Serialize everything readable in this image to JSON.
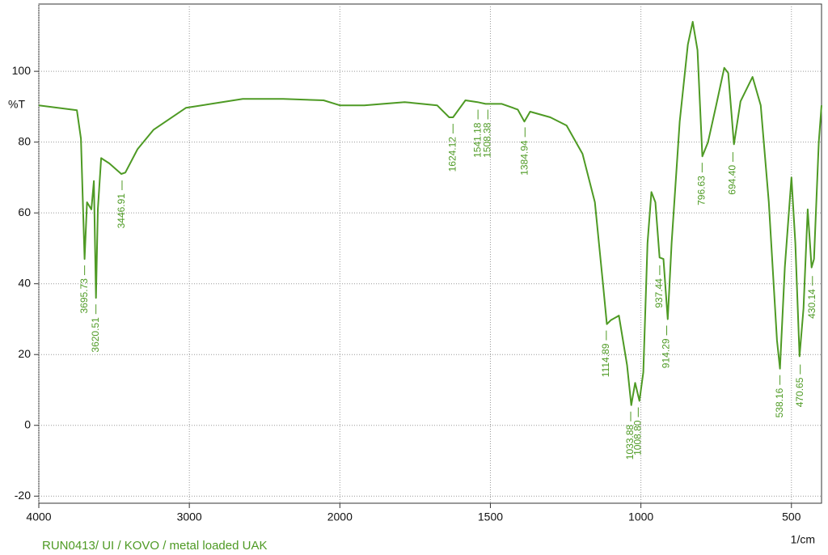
{
  "chart_data": {
    "type": "line",
    "title": "RUN0413/ UI / KOVO / metal loaded UAK",
    "y_label": "%T",
    "x_label": "1/cm",
    "color": "#4e9a24",
    "grid": true,
    "xlim": [
      4000,
      400
    ],
    "ylim": [
      -22,
      119
    ],
    "xticks": [
      4000,
      3000,
      2000,
      1500,
      1000,
      500
    ],
    "yticks": [
      -20,
      0,
      20,
      40,
      60,
      80,
      100
    ],
    "x": [
      4000,
      3747,
      3720,
      3696,
      3680,
      3651,
      3634,
      3620,
      3608,
      3586,
      3532,
      3452,
      3425,
      3344,
      3237,
      3022,
      2645,
      2376,
      2108,
      2000,
      1919,
      1785,
      1677,
      1637,
      1624,
      1583,
      1543,
      1516,
      1462,
      1409,
      1387,
      1368,
      1301,
      1247,
      1194,
      1153,
      1126,
      1113,
      1100,
      1073,
      1046,
      1032,
      1019,
      1005,
      992,
      978,
      965,
      952,
      938,
      925,
      911,
      898,
      871,
      844,
      828,
      812,
      796,
      777,
      750,
      723,
      710,
      691,
      669,
      629,
      602,
      575,
      548,
      538,
      522,
      500,
      487,
      473,
      460,
      446,
      433,
      425,
      409,
      400
    ],
    "values": [
      90.4,
      89,
      81,
      47,
      63,
      61,
      69,
      36,
      61,
      75.5,
      74,
      71,
      71.4,
      78,
      83.5,
      89.7,
      92.2,
      92.2,
      91.8,
      90.4,
      90.4,
      91.3,
      90.4,
      87,
      87,
      91.8,
      91.3,
      90.8,
      90.8,
      89.2,
      85.8,
      88.6,
      87,
      84.7,
      76.7,
      63,
      40,
      28.6,
      29.7,
      31,
      17,
      5.7,
      12,
      6.9,
      15,
      51.5,
      65.9,
      63,
      47.4,
      47,
      30,
      51.5,
      85.8,
      107.6,
      114,
      106,
      76,
      80,
      90.4,
      101,
      99.5,
      79.4,
      91.5,
      98.4,
      90.4,
      63,
      24,
      16,
      44.6,
      70,
      51.5,
      19.5,
      33,
      61,
      44.6,
      47,
      80,
      90.4
    ],
    "peaks": [
      {
        "x": 3695.73,
        "y": 47,
        "label": "3695.73"
      },
      {
        "x": 3620.51,
        "y": 36,
        "label": "3620.51"
      },
      {
        "x": 3446.91,
        "y": 71,
        "label": "3446.91"
      },
      {
        "x": 1624.12,
        "y": 87,
        "label": "1624.12"
      },
      {
        "x": 1541.18,
        "y": 91,
        "label": "1541.18"
      },
      {
        "x": 1508.38,
        "y": 91,
        "label": "1508.38"
      },
      {
        "x": 1384.94,
        "y": 86,
        "label": "1384.94"
      },
      {
        "x": 1114.89,
        "y": 28.6,
        "label": "1114.89"
      },
      {
        "x": 1033.88,
        "y": 5.7,
        "label": "1033.88"
      },
      {
        "x": 1008.8,
        "y": 6.9,
        "label": "1008.80"
      },
      {
        "x": 937.44,
        "y": 47,
        "label": "937.44"
      },
      {
        "x": 914.29,
        "y": 30,
        "label": "914.29"
      },
      {
        "x": 796.63,
        "y": 76,
        "label": "796.63"
      },
      {
        "x": 694.4,
        "y": 79,
        "label": "694.40"
      },
      {
        "x": 538.16,
        "y": 16,
        "label": "538.16"
      },
      {
        "x": 470.65,
        "y": 19,
        "label": "470.65"
      },
      {
        "x": 430.14,
        "y": 44,
        "label": "430.14"
      }
    ]
  }
}
